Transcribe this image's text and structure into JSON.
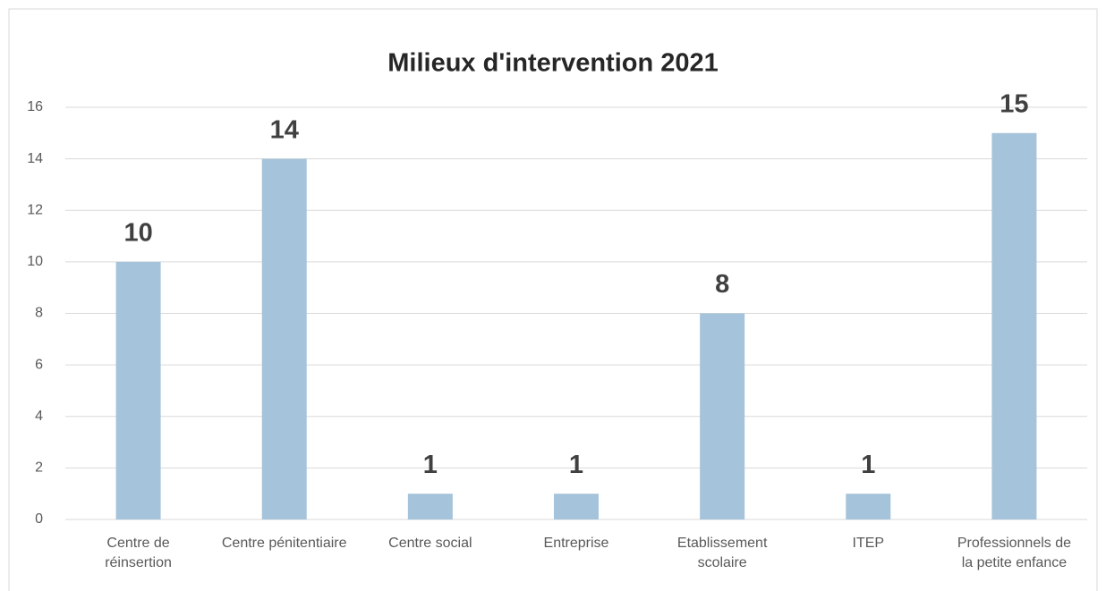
{
  "chart_data": {
    "type": "bar",
    "title": "Milieux d'intervention 2021",
    "categories": [
      "Centre de réinsertion",
      "Centre pénitentiaire",
      "Centre social",
      "Entreprise",
      "Etablissement scolaire",
      "ITEP",
      "Professionnels de la petite enfance"
    ],
    "values": [
      10,
      14,
      1,
      1,
      8,
      1,
      15
    ],
    "color": "#a5c3da",
    "ylim": [
      0,
      16
    ],
    "yticks": [
      0,
      2,
      4,
      6,
      8,
      10,
      12,
      14,
      16
    ],
    "grid": true
  }
}
